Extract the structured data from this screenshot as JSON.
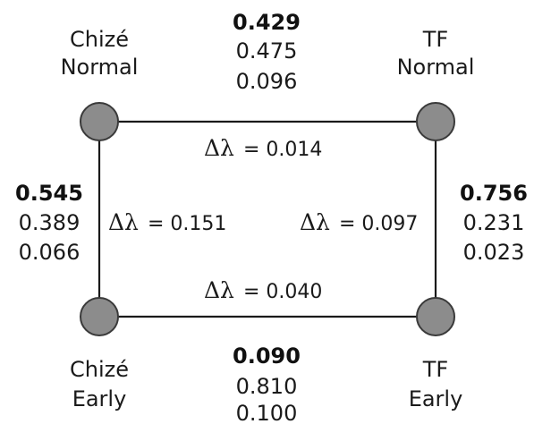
{
  "nodes": {
    "chize_normal": {
      "line1": "Chizé",
      "line2": "Normal"
    },
    "tf_normal": {
      "line1": "TF",
      "line2": "Normal"
    },
    "chize_early": {
      "line1": "Chizé",
      "line2": "Early"
    },
    "tf_early": {
      "line1": "TF",
      "line2": "Early"
    }
  },
  "edges": {
    "top": {
      "delta_symbol": "Δλ",
      "delta_text": "= 0.014",
      "values": [
        "0.429",
        "0.475",
        "0.096"
      ]
    },
    "left": {
      "delta_symbol": "Δλ",
      "delta_text": "= 0.151",
      "values": [
        "0.545",
        "0.389",
        "0.066"
      ]
    },
    "right": {
      "delta_symbol": "Δλ",
      "delta_text": "= 0.097",
      "values": [
        "0.756",
        "0.231",
        "0.023"
      ]
    },
    "bottom": {
      "delta_symbol": "Δλ",
      "delta_text": "= 0.040",
      "values": [
        "0.090",
        "0.810",
        "0.100"
      ]
    }
  }
}
